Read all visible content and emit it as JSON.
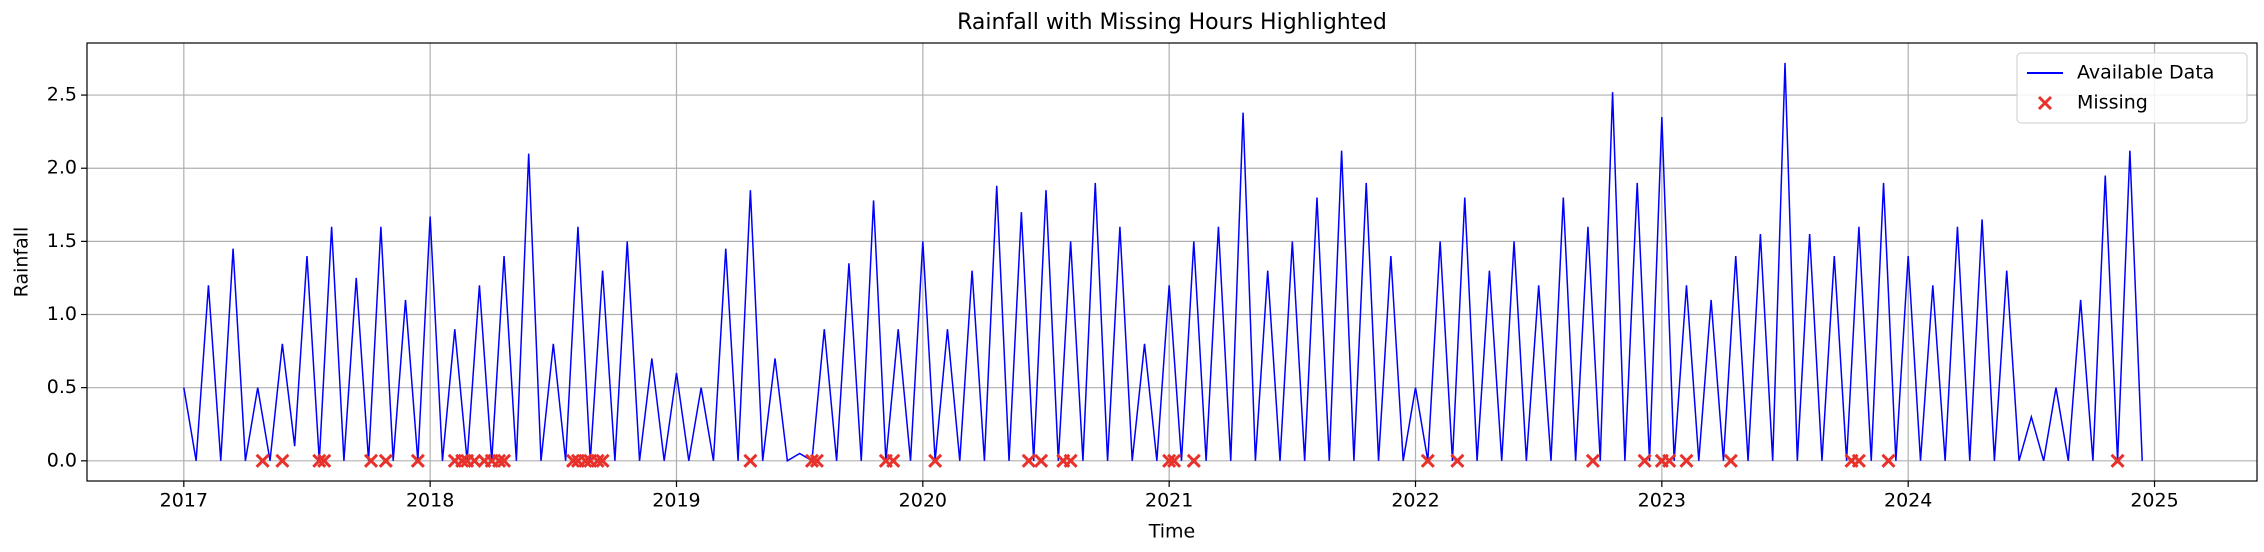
{
  "chart_data": {
    "type": "line",
    "title": "Rainfall with Missing Hours Highlighted",
    "x_label": "Time",
    "y_label": "Rainfall",
    "xlim": [
      2016.607,
      2025.416
    ],
    "xticks": [
      2017,
      2018,
      2019,
      2020,
      2021,
      2022,
      2023,
      2024,
      2025
    ],
    "ylim": [
      -0.138,
      2.856
    ],
    "yticks": [
      {
        "value": 0,
        "label": "0.0"
      },
      0.5,
      {
        "value": 1,
        "label": "1.0"
      },
      1.5,
      {
        "value": 2,
        "label": "2.0"
      },
      2.5
    ],
    "grid": true,
    "legend": "upper right",
    "series": [
      {
        "name": "Available Data",
        "color": "#0000ff",
        "style": "line",
        "x": [
          2017,
          2017.05,
          2017.1,
          2017.15,
          2017.2,
          2017.25,
          2017.3,
          2017.35,
          2017.4,
          2017.45,
          2017.5,
          2017.55,
          2017.6,
          2017.65,
          2017.7,
          2017.75,
          2017.8,
          2017.85,
          2017.9,
          2017.95,
          2018,
          2018.05,
          2018.1,
          2018.15,
          2018.2,
          2018.25,
          2018.3,
          2018.35,
          2018.4,
          2018.45,
          2018.5,
          2018.55,
          2018.6,
          2018.65,
          2018.7,
          2018.75,
          2018.8,
          2018.85,
          2018.9,
          2018.95,
          2019,
          2019.05,
          2019.1,
          2019.15,
          2019.2,
          2019.25,
          2019.3,
          2019.35,
          2019.4,
          2019.45,
          2019.5,
          2019.55,
          2019.6,
          2019.65,
          2019.7,
          2019.75,
          2019.8,
          2019.85,
          2019.9,
          2019.95,
          2020,
          2020.05,
          2020.1,
          2020.15,
          2020.2,
          2020.25,
          2020.3,
          2020.35,
          2020.4,
          2020.45,
          2020.5,
          2020.55,
          2020.6,
          2020.65,
          2020.7,
          2020.75,
          2020.8,
          2020.85,
          2020.9,
          2020.95,
          2021,
          2021.05,
          2021.1,
          2021.15,
          2021.2,
          2021.25,
          2021.3,
          2021.35,
          2021.4,
          2021.45,
          2021.5,
          2021.55,
          2021.6,
          2021.65,
          2021.7,
          2021.75,
          2021.8,
          2021.85,
          2021.9,
          2021.95,
          2022,
          2022.05,
          2022.1,
          2022.15,
          2022.2,
          2022.25,
          2022.3,
          2022.35,
          2022.4,
          2022.45,
          2022.5,
          2022.55,
          2022.6,
          2022.65,
          2022.7,
          2022.75,
          2022.8,
          2022.85,
          2022.9,
          2022.95,
          2023,
          2023.05,
          2023.1,
          2023.15,
          2023.2,
          2023.25,
          2023.3,
          2023.35,
          2023.4,
          2023.45,
          2023.5,
          2023.55,
          2023.6,
          2023.65,
          2023.7,
          2023.75,
          2023.8,
          2023.85,
          2023.9,
          2023.95,
          2024,
          2024.05,
          2024.1,
          2024.15,
          2024.2,
          2024.25,
          2024.3,
          2024.35,
          2024.4,
          2024.45,
          2024.5,
          2024.55,
          2024.6,
          2024.65,
          2024.7,
          2024.75,
          2024.8,
          2024.85,
          2024.9,
          2024.95
        ],
        "values": [
          0.5,
          0,
          1.2,
          0,
          1.45,
          0,
          0.5,
          0,
          0.8,
          0.1,
          1.4,
          0,
          1.6,
          0,
          1.25,
          0,
          1.6,
          0,
          1.1,
          0,
          1.67,
          0,
          0.9,
          0,
          1.2,
          0,
          1.4,
          0,
          2.1,
          0,
          0.8,
          0,
          1.6,
          0,
          1.3,
          0,
          1.5,
          0,
          0.7,
          0,
          0.6,
          0,
          0.5,
          0,
          1.45,
          0,
          1.85,
          0,
          0.7,
          0,
          0.05,
          0,
          0.9,
          0,
          1.35,
          0,
          1.78,
          0,
          0.9,
          0,
          1.5,
          0,
          0.9,
          0,
          1.3,
          0,
          1.88,
          0,
          1.7,
          0,
          1.85,
          0,
          1.5,
          0,
          1.9,
          0,
          1.6,
          0,
          0.8,
          0,
          1.2,
          0,
          1.5,
          0,
          1.6,
          0,
          2.38,
          0,
          1.3,
          0,
          1.5,
          0,
          1.8,
          0,
          2.12,
          0,
          1.9,
          0,
          1.4,
          0,
          0.5,
          0,
          1.5,
          0,
          1.8,
          0,
          1.3,
          0,
          1.5,
          0,
          1.2,
          0,
          1.8,
          0,
          1.6,
          0,
          2.52,
          0,
          1.9,
          0,
          2.35,
          0,
          1.2,
          0,
          1.1,
          0,
          1.4,
          0,
          1.55,
          0,
          2.72,
          0,
          1.55,
          0,
          1.4,
          0,
          1.6,
          0,
          1.9,
          0,
          1.4,
          0,
          1.2,
          0,
          1.6,
          0,
          1.65,
          0,
          1.3,
          0,
          0.3,
          0,
          0.5,
          0,
          1.1,
          0,
          1.95,
          0,
          2.12,
          0
        ]
      },
      {
        "name": "Missing",
        "color": "#e8312a",
        "style": "scatter",
        "x": [
          2017.32,
          2017.4,
          2017.55,
          2017.57,
          2017.76,
          2017.82,
          2017.95,
          2018.1,
          2018.13,
          2018.15,
          2018.18,
          2018.22,
          2018.25,
          2018.28,
          2018.3,
          2018.58,
          2018.6,
          2018.63,
          2018.65,
          2018.68,
          2018.7,
          2019.3,
          2019.55,
          2019.57,
          2019.85,
          2019.88,
          2020.05,
          2020.43,
          2020.48,
          2020.57,
          2020.6,
          2021,
          2021.02,
          2021.1,
          2022.05,
          2022.17,
          2022.72,
          2022.93,
          2023,
          2023.03,
          2023.1,
          2023.28,
          2023.77,
          2023.8,
          2023.92,
          2024.85
        ],
        "values": [
          0,
          0,
          0,
          0,
          0,
          0,
          0,
          0,
          0,
          0,
          0,
          0,
          0,
          0,
          0,
          0,
          0,
          0,
          0,
          0,
          0,
          0,
          0,
          0,
          0,
          0,
          0,
          0,
          0,
          0,
          0,
          0,
          0,
          0,
          0,
          0,
          0,
          0,
          0,
          0,
          0,
          0,
          0,
          0,
          0,
          0
        ]
      }
    ]
  }
}
